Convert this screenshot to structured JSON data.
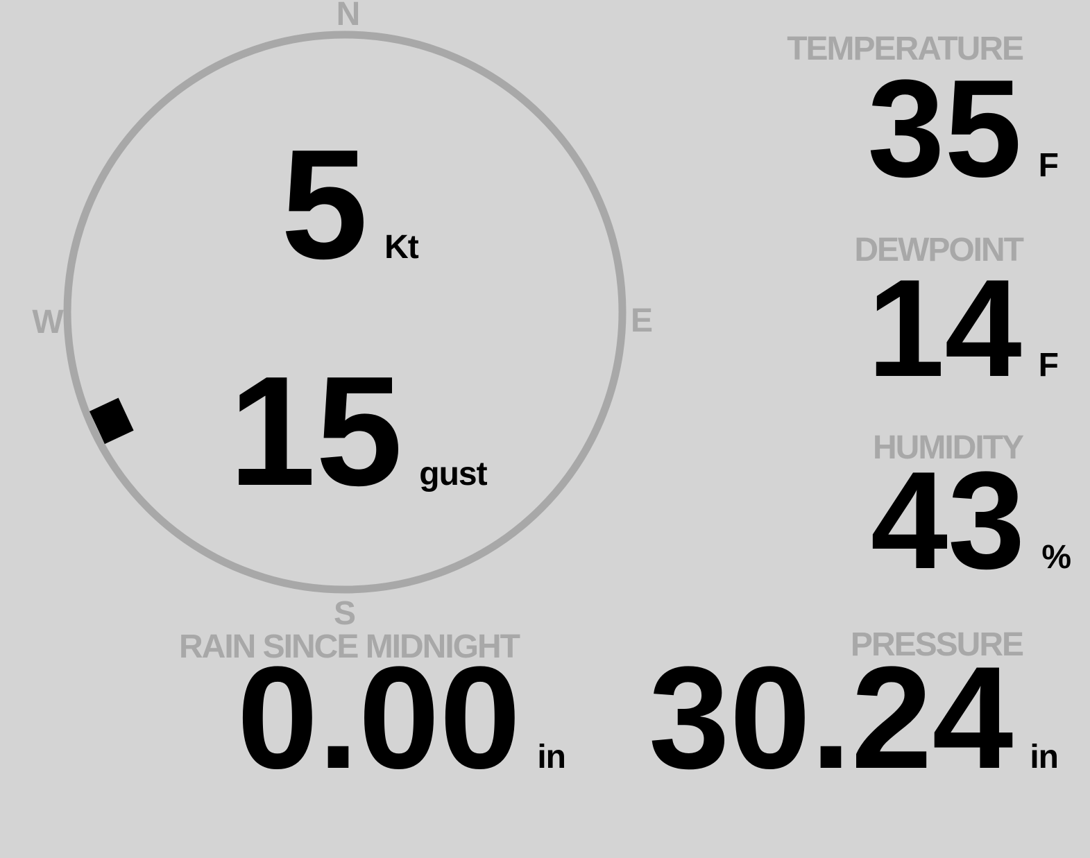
{
  "compass": {
    "north": "N",
    "east": "E",
    "south": "S",
    "west": "W"
  },
  "wind": {
    "speed": "5",
    "speed_unit": "Kt",
    "gust": "15",
    "gust_unit": "gust",
    "direction_deg": 245
  },
  "metrics": {
    "temperature": {
      "label": "TEMPERATURE",
      "value": "35",
      "unit": "F"
    },
    "dewpoint": {
      "label": "DEWPOINT",
      "value": "14",
      "unit": "F"
    },
    "humidity": {
      "label": "HUMIDITY",
      "value": "43",
      "unit": "%"
    },
    "pressure": {
      "label": "PRESSURE",
      "value": "30.24",
      "unit": "in"
    },
    "rain_since_midnight": {
      "label": "RAIN SINCE MIDNIGHT",
      "value": "0.00",
      "unit": "in"
    }
  },
  "colors": {
    "background": "#d4d4d4",
    "muted": "#a8a8a8",
    "value": "#000000"
  }
}
